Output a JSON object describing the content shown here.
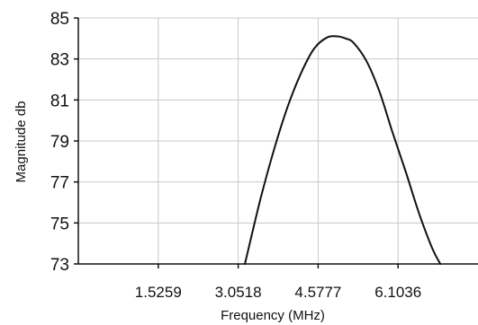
{
  "chart_data": {
    "type": "line",
    "title": "",
    "xlabel": "Frequency (MHz)",
    "ylabel": "Magnitude db",
    "xlim": [
      0,
      7.6295
    ],
    "ylim": [
      73,
      85
    ],
    "x_ticks": [
      "1.5259",
      "3.0518",
      "4.5777",
      "6.1036"
    ],
    "y_ticks": [
      "73",
      "75",
      "77",
      "79",
      "81",
      "83",
      "85"
    ],
    "grid": true,
    "legend": "none",
    "colors": {
      "line": "#111111",
      "grid": "#c8c8c8",
      "axis": "#111111"
    },
    "series": [
      {
        "x": [
          3.18,
          3.3,
          3.5,
          3.75,
          4.0,
          4.25,
          4.5,
          4.75,
          4.95,
          5.1,
          5.25,
          5.5,
          5.75,
          6.0,
          6.25,
          6.5,
          6.75,
          6.91
        ],
        "y": [
          73.0,
          74.3,
          76.4,
          78.7,
          80.7,
          82.3,
          83.5,
          84.05,
          84.1,
          84.0,
          83.8,
          82.9,
          81.4,
          79.4,
          77.5,
          75.5,
          73.8,
          73.0
        ]
      }
    ]
  }
}
